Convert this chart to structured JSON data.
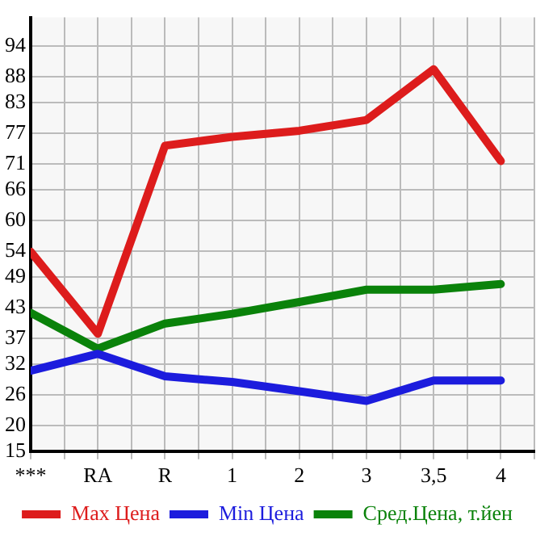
{
  "chart_data": {
    "type": "line",
    "categories": [
      "***",
      "RA",
      "R",
      "1",
      "2",
      "3",
      "3,5",
      "4"
    ],
    "series": [
      {
        "name": "Max Цена",
        "color": "#dd1c1c",
        "values": [
          53.9,
          37.9,
          74.6,
          76.3,
          77.5,
          79.6,
          89.5,
          71.6
        ]
      },
      {
        "name": "Min Цена",
        "color": "#1c1cdd",
        "values": [
          30.7,
          34.0,
          29.6,
          28.5,
          26.7,
          24.8,
          28.8,
          28.8
        ]
      },
      {
        "name": "Сред.Цена, т.йен",
        "color": "#0a820a",
        "values": [
          42.0,
          35.0,
          39.9,
          41.8,
          44.1,
          46.5,
          46.5,
          47.6
        ]
      }
    ],
    "ylim": [
      15,
      99.6
    ],
    "yticks": [
      15,
      20,
      26,
      32,
      37,
      43,
      49,
      54,
      60,
      66,
      71,
      77,
      83,
      88,
      94
    ],
    "grid": true,
    "legend": "bottom",
    "marker": "none",
    "line_style": "solid"
  }
}
